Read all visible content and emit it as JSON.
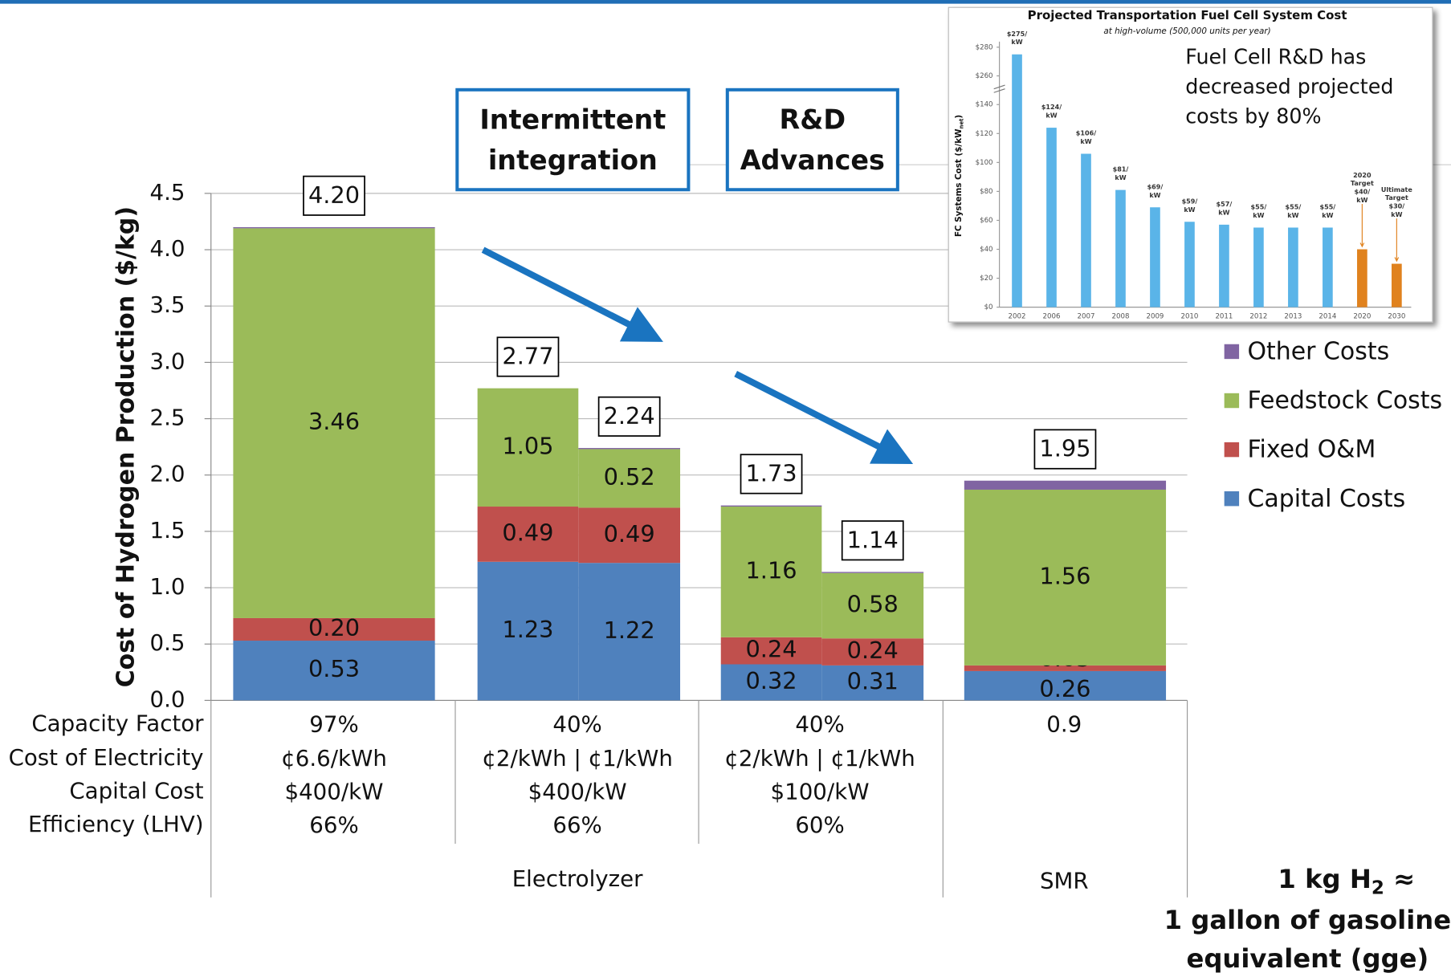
{
  "chart_data": [
    {
      "type": "stacked_bar",
      "y_label": "Cost of Hydrogen Production ($/kg)",
      "categories": [
        null,
        null,
        null,
        null,
        null,
        null
      ],
      "ylim": [
        0,
        4.5
      ],
      "yticks": [
        {
          "value": 0,
          "label": "0.0"
        },
        {
          "value": 0.5,
          "label": "0.5"
        },
        {
          "value": 1,
          "label": "1.0"
        },
        {
          "value": 1.5,
          "label": "1.5"
        },
        {
          "value": 2,
          "label": "2.0"
        },
        {
          "value": 2.5,
          "label": "2.5"
        },
        {
          "value": 3,
          "label": "3.0"
        },
        {
          "value": 3.5,
          "label": "3.5"
        },
        {
          "value": 4,
          "label": "4.0"
        },
        {
          "value": 4.5,
          "label": "4.5"
        }
      ],
      "grid": true,
      "series": [
        {
          "name": "Capital Costs",
          "color": "#4f81bd",
          "values": [
            0.53,
            1.23,
            1.22,
            0.32,
            0.31,
            0.26
          ],
          "value_labels": [
            "0.53",
            "1.23",
            "1.22",
            "0.32",
            "0.31",
            "0.26"
          ]
        },
        {
          "name": "Fixed O&M",
          "color": "#c0504d",
          "values": [
            0.2,
            0.49,
            0.49,
            0.24,
            0.24,
            0.05
          ],
          "value_labels": [
            "0.20",
            "0.49",
            "0.49",
            "0.24",
            "0.24",
            "0.05"
          ]
        },
        {
          "name": "Feedstock Costs",
          "color": "#9bbb59",
          "values": [
            3.46,
            1.05,
            0.52,
            1.16,
            0.58,
            1.56
          ],
          "value_labels": [
            "3.46",
            "1.05",
            "0.52",
            "1.16",
            "0.58",
            "1.56"
          ]
        },
        {
          "name": "Other Costs",
          "color": "#8064a2",
          "values": [
            0.01,
            0,
            0.01,
            0.01,
            0.01,
            0.08
          ]
        }
      ],
      "totals": [
        4.2,
        2.77,
        2.24,
        1.73,
        1.14,
        1.95
      ],
      "total_labels": [
        "4.20",
        "2.77",
        "2.24",
        "1.73",
        "1.14",
        "1.95"
      ],
      "legend": "right",
      "annotations": [
        [
          "Intermittent",
          "integration"
        ],
        [
          "R&D",
          "Advances"
        ]
      ]
    },
    {
      "type": "bar",
      "title": "Projected Transportation Fuel Cell System Cost",
      "subtitle": "at high-volume (500,000 units per year)",
      "y_label": [
        "FC Systems Cost ($/kW",
        "net",
        ")"
      ],
      "categories": [
        "2002",
        "2006",
        "2007",
        "2008",
        "2009",
        "2010",
        "2011",
        "2012",
        "2013",
        "2014",
        "2020",
        "2030"
      ],
      "values": [
        275,
        124,
        106,
        81,
        69,
        59,
        57,
        55,
        55,
        55,
        40,
        30
      ],
      "colors": [
        "#5ab4e8",
        "#5ab4e8",
        "#5ab4e8",
        "#5ab4e8",
        "#5ab4e8",
        "#5ab4e8",
        "#5ab4e8",
        "#5ab4e8",
        "#5ab4e8",
        "#5ab4e8",
        "#e0821e",
        "#e0821e"
      ],
      "value_labels": [
        [
          "$275/",
          "kW"
        ],
        [
          "$124/",
          "kW"
        ],
        [
          "$106/",
          "kW"
        ],
        [
          "$81/",
          "kW"
        ],
        [
          "$69/",
          "kW"
        ],
        [
          "$59/",
          "kW"
        ],
        [
          "$57/",
          "kW"
        ],
        [
          "$55/",
          "kW"
        ],
        [
          "$55/",
          "kW"
        ],
        [
          "$55/",
          "kW"
        ],
        [
          "2020",
          "Target",
          "$40/",
          "kW"
        ],
        [
          "Ultimate",
          "Target",
          "$30/",
          "kW"
        ]
      ],
      "ylim": [
        0,
        285
      ],
      "axis_break": [
        150,
        250
      ],
      "yticks": [
        {
          "value": 0,
          "label": "$0"
        },
        {
          "value": 20,
          "label": "$20"
        },
        {
          "value": 40,
          "label": "$40"
        },
        {
          "value": 60,
          "label": "$60"
        },
        {
          "value": 80,
          "label": "$80"
        },
        {
          "value": 100,
          "label": "$100"
        },
        {
          "value": 120,
          "label": "$120"
        },
        {
          "value": 140,
          "label": "$140"
        },
        {
          "value": 260,
          "label": "$260"
        },
        {
          "value": 280,
          "label": "$280"
        }
      ],
      "annotation": [
        "Fuel Cell R&D has",
        "decreased projected",
        "costs by 80%"
      ]
    }
  ],
  "table": {
    "row_labels": [
      "Capacity Factor",
      "Cost of Electricity",
      "Capital Cost",
      "Efficiency (LHV)"
    ],
    "columns": [
      [
        "97%",
        "¢6.6/kWh",
        "$400/kW",
        "66%"
      ],
      [
        "40%",
        "¢2/kWh  |  ¢1/kWh",
        "$400/kW",
        "66%"
      ],
      [
        "40%",
        "¢2/kWh  |  ¢1/kWh",
        "$100/kW",
        "60%"
      ],
      [
        "0.9"
      ]
    ],
    "groups": [
      "Electrolyzer",
      "SMR"
    ]
  },
  "note": [
    "1 kg H",
    "2",
    " ≈",
    "1 gallon of gasoline",
    "equivalent (gge)"
  ]
}
